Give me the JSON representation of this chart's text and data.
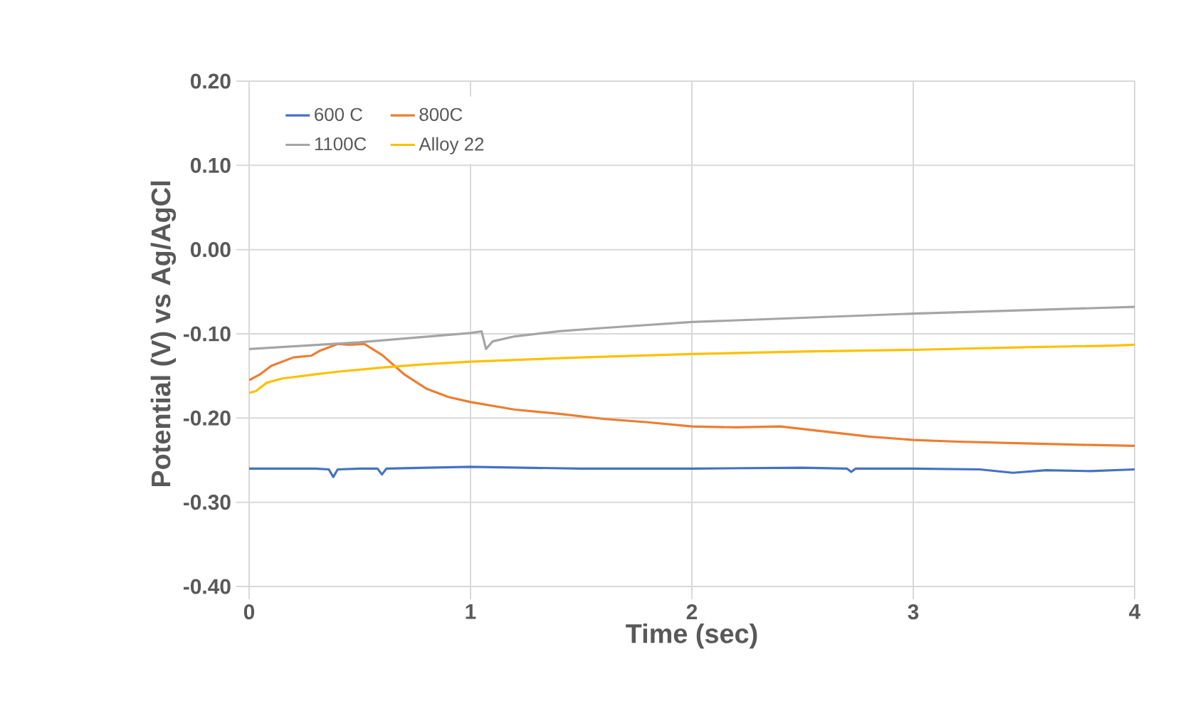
{
  "chart_data": {
    "type": "line",
    "xlabel": "Time (sec)",
    "ylabel": "Potential (V) vs Ag/AgCl",
    "xlim": [
      0,
      4
    ],
    "xticks": [
      0,
      1,
      2,
      3,
      4
    ],
    "ylim": [
      -0.4,
      0.2
    ],
    "yticks": [
      {
        "value": -0.4,
        "label": "-0.40"
      },
      {
        "value": -0.3,
        "label": "-0.30"
      },
      {
        "value": -0.2,
        "label": "-0.20"
      },
      {
        "value": -0.1,
        "label": "-0.10"
      },
      {
        "value": 0,
        "label": "0.00"
      },
      {
        "value": 0.1,
        "label": "0.10"
      },
      {
        "value": 0.2,
        "label": "0.20"
      }
    ],
    "grid": true,
    "legend": "top left",
    "marker": "none",
    "line_style": "solid",
    "series": [
      {
        "name": "600 C",
        "color": "#4472c4",
        "x": [
          0,
          0.1,
          0.3,
          0.36,
          0.38,
          0.4,
          0.5,
          0.58,
          0.6,
          0.62,
          0.8,
          1.0,
          1.5,
          2.0,
          2.5,
          2.7,
          2.72,
          2.74,
          3.0,
          3.3,
          3.45,
          3.6,
          3.8,
          4.0
        ],
        "values": [
          -0.26,
          -0.26,
          -0.26,
          -0.261,
          -0.27,
          -0.261,
          -0.26,
          -0.26,
          -0.267,
          -0.26,
          -0.259,
          -0.258,
          -0.26,
          -0.26,
          -0.259,
          -0.26,
          -0.264,
          -0.26,
          -0.26,
          -0.261,
          -0.265,
          -0.262,
          -0.263,
          -0.261
        ]
      },
      {
        "name": "800C",
        "color": "#ed7d31",
        "x": [
          0,
          0.05,
          0.1,
          0.2,
          0.28,
          0.32,
          0.4,
          0.45,
          0.52,
          0.6,
          0.7,
          0.8,
          0.9,
          1.0,
          1.2,
          1.4,
          1.6,
          1.8,
          2.0,
          2.2,
          2.4,
          2.6,
          2.8,
          3.0,
          3.2,
          3.5,
          3.8,
          4.0
        ],
        "values": [
          -0.155,
          -0.148,
          -0.138,
          -0.128,
          -0.126,
          -0.12,
          -0.112,
          -0.113,
          -0.112,
          -0.125,
          -0.148,
          -0.165,
          -0.175,
          -0.181,
          -0.19,
          -0.195,
          -0.201,
          -0.205,
          -0.21,
          -0.211,
          -0.21,
          -0.216,
          -0.222,
          -0.226,
          -0.228,
          -0.23,
          -0.232,
          -0.233
        ]
      },
      {
        "name": "1100C",
        "color": "#a5a5a5",
        "x": [
          0,
          0.5,
          1.0,
          1.05,
          1.07,
          1.1,
          1.2,
          1.4,
          1.6,
          2.0,
          2.5,
          3.0,
          3.5,
          4.0
        ],
        "values": [
          -0.118,
          -0.11,
          -0.099,
          -0.097,
          -0.118,
          -0.109,
          -0.103,
          -0.097,
          -0.093,
          -0.086,
          -0.081,
          -0.076,
          -0.072,
          -0.068
        ]
      },
      {
        "name": "Alloy 22",
        "color": "#ffc000",
        "x": [
          0,
          0.03,
          0.08,
          0.15,
          0.3,
          0.4,
          0.6,
          0.8,
          1.0,
          1.5,
          2.0,
          2.5,
          3.0,
          3.5,
          3.9,
          4.0
        ],
        "values": [
          -0.17,
          -0.168,
          -0.158,
          -0.153,
          -0.148,
          -0.145,
          -0.14,
          -0.136,
          -0.133,
          -0.128,
          -0.124,
          -0.121,
          -0.119,
          -0.116,
          -0.114,
          -0.113
        ]
      }
    ]
  }
}
